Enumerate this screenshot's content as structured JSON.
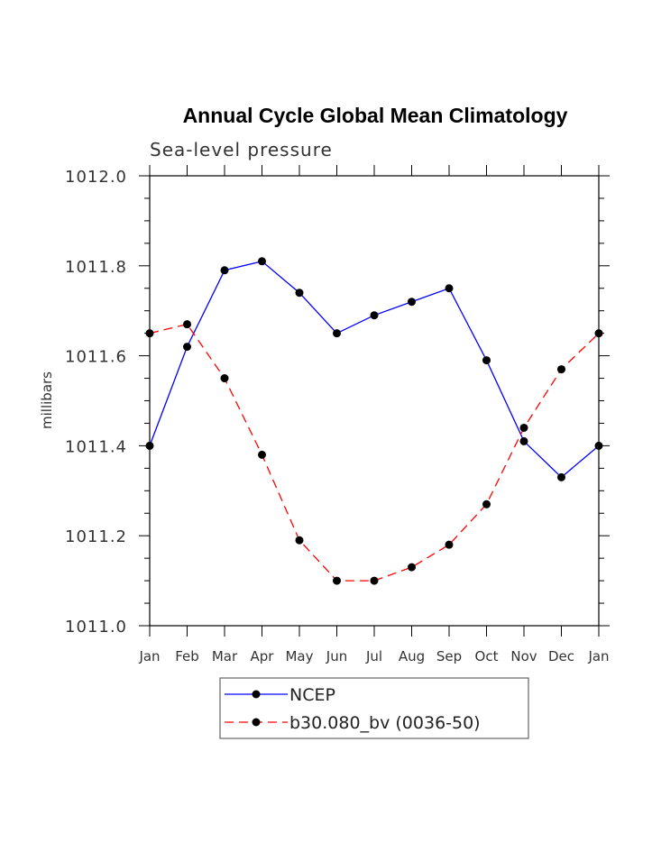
{
  "chart_data": {
    "type": "line",
    "title": "Annual Cycle Global Mean Climatology",
    "subtitle": "Sea-level pressure",
    "xlabel": "",
    "ylabel": "millibars",
    "categories": [
      "Jan",
      "Feb",
      "Mar",
      "Apr",
      "May",
      "Jun",
      "Jul",
      "Aug",
      "Sep",
      "Oct",
      "Nov",
      "Dec",
      "Jan"
    ],
    "ylim": [
      1011.0,
      1012.0
    ],
    "yticks": [
      "1011.0",
      "1011.2",
      "1011.4",
      "1011.6",
      "1011.8",
      "1012.0"
    ],
    "ytick_values": [
      1011.0,
      1011.2,
      1011.4,
      1011.6,
      1011.8,
      1012.0
    ],
    "y_minor_step": 0.05,
    "grid": false,
    "legend_position": "bottom-center",
    "series": [
      {
        "name": "NCEP",
        "color": "#0000ff",
        "style": "solid",
        "marker": "circle",
        "values": [
          1011.4,
          1011.62,
          1011.79,
          1011.81,
          1011.74,
          1011.65,
          1011.69,
          1011.72,
          1011.75,
          1011.59,
          1011.41,
          1011.33,
          1011.4
        ]
      },
      {
        "name": "b30.080_bv (0036-50)",
        "color": "#ff0000",
        "style": "dashed",
        "marker": "circle",
        "values": [
          1011.65,
          1011.67,
          1011.55,
          1011.38,
          1011.19,
          1011.1,
          1011.1,
          1011.13,
          1011.18,
          1011.27,
          1011.44,
          1011.57,
          1011.65
        ]
      }
    ]
  }
}
